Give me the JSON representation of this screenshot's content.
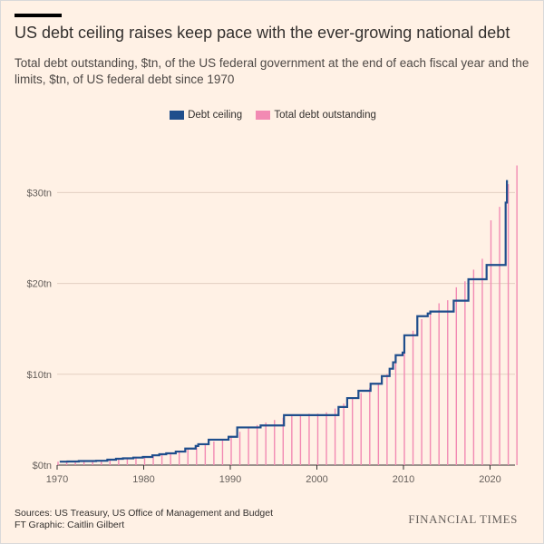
{
  "title": "US debt ceiling raises keep pace with the ever-growing national debt",
  "subtitle": "Total debt outstanding, $tn, of the US federal government at the end of each fiscal year and the limits, $tn, of US federal debt since 1970",
  "legend": {
    "ceiling": "Debt ceiling",
    "debt": "Total debt outstanding"
  },
  "footer": {
    "sources": "Sources: US Treasury, US Office of Management and Budget",
    "graphic": "FT Graphic: Caitlin Gilbert",
    "brand": "FINANCIAL TIMES"
  },
  "colors": {
    "ceiling": "#1f4e8c",
    "debt": "#f28ab3",
    "background": "#fff1e5",
    "grid": "#e3cfc1"
  },
  "chart_data": {
    "type": "bar",
    "xlim": [
      1970,
      2023
    ],
    "ylim": [
      0,
      32
    ],
    "yticks": [
      0,
      10,
      20,
      30
    ],
    "ytick_labels": [
      "$0tn",
      "$10tn",
      "$20tn",
      "$30tn"
    ],
    "xticks": [
      1970,
      1980,
      1990,
      2000,
      2010,
      2020
    ],
    "xtick_labels": [
      "1970",
      "1980",
      "1990",
      "2000",
      "2010",
      "2020"
    ],
    "series": [
      {
        "name": "Total debt outstanding",
        "type": "bar",
        "x": [
          1970,
          1971,
          1972,
          1973,
          1974,
          1975,
          1976,
          1977,
          1978,
          1979,
          1980,
          1981,
          1982,
          1983,
          1984,
          1985,
          1986,
          1987,
          1988,
          1989,
          1990,
          1991,
          1992,
          1993,
          1994,
          1995,
          1996,
          1997,
          1998,
          1999,
          2000,
          2001,
          2002,
          2003,
          2004,
          2005,
          2006,
          2007,
          2008,
          2009,
          2010,
          2011,
          2012,
          2013,
          2014,
          2015,
          2016,
          2017,
          2018,
          2019,
          2020,
          2021,
          2022,
          2023
        ],
        "values": [
          0.38,
          0.41,
          0.44,
          0.47,
          0.47,
          0.53,
          0.62,
          0.7,
          0.77,
          0.83,
          0.91,
          1.0,
          1.14,
          1.37,
          1.56,
          1.82,
          2.13,
          2.35,
          2.6,
          2.86,
          3.23,
          3.67,
          4.06,
          4.41,
          4.69,
          4.97,
          5.22,
          5.41,
          5.53,
          5.66,
          5.67,
          5.81,
          6.23,
          6.78,
          7.38,
          7.93,
          8.51,
          9.01,
          10.03,
          11.91,
          13.56,
          14.79,
          16.07,
          16.74,
          17.82,
          18.15,
          19.57,
          20.24,
          21.52,
          22.72,
          26.95,
          28.43,
          30.93,
          32.99
        ]
      },
      {
        "name": "Debt ceiling",
        "type": "step",
        "points": [
          [
            1970.3,
            0.38
          ],
          [
            1971.2,
            0.4
          ],
          [
            1972.5,
            0.45
          ],
          [
            1974.5,
            0.48
          ],
          [
            1975.8,
            0.6
          ],
          [
            1976.8,
            0.7
          ],
          [
            1977.6,
            0.75
          ],
          [
            1978.8,
            0.83
          ],
          [
            1979.9,
            0.9
          ],
          [
            1981.0,
            1.08
          ],
          [
            1981.8,
            1.2
          ],
          [
            1982.6,
            1.3
          ],
          [
            1983.7,
            1.49
          ],
          [
            1984.8,
            1.82
          ],
          [
            1986.0,
            2.11
          ],
          [
            1986.3,
            2.3
          ],
          [
            1987.5,
            2.8
          ],
          [
            1989.8,
            3.12
          ],
          [
            1990.8,
            4.15
          ],
          [
            1993.5,
            4.37
          ],
          [
            1996.2,
            5.5
          ],
          [
            2002.5,
            6.4
          ],
          [
            2003.5,
            7.38
          ],
          [
            2004.8,
            8.18
          ],
          [
            2006.2,
            8.96
          ],
          [
            2007.5,
            9.8
          ],
          [
            2008.4,
            10.61
          ],
          [
            2008.8,
            11.32
          ],
          [
            2009.1,
            12.1
          ],
          [
            2009.9,
            12.39
          ],
          [
            2010.1,
            14.29
          ],
          [
            2011.6,
            16.39
          ],
          [
            2012.8,
            16.7
          ],
          [
            2013.1,
            16.9
          ],
          [
            2015.8,
            18.1
          ],
          [
            2017.5,
            20.46
          ],
          [
            2019.6,
            22.03
          ],
          [
            2021.8,
            28.9
          ],
          [
            2021.95,
            31.38
          ]
        ]
      }
    ]
  }
}
